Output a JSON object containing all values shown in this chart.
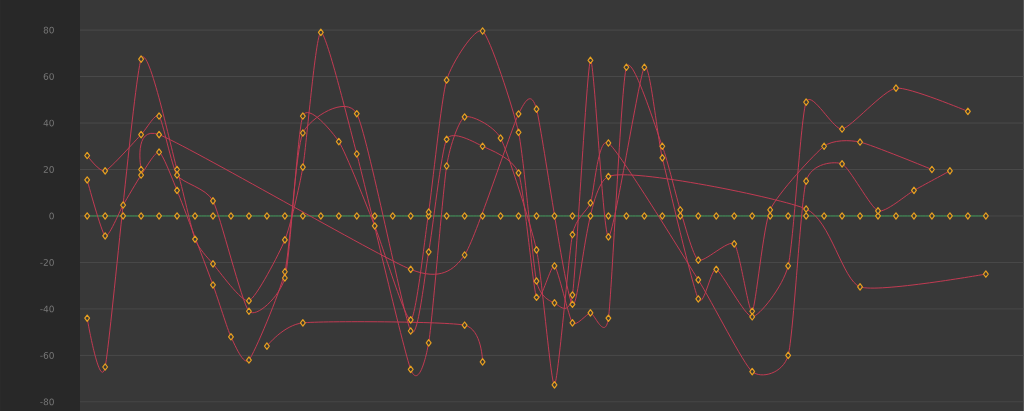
{
  "chart_data": {
    "type": "line",
    "marker": "diamond",
    "line_style": "solid",
    "grid": "y",
    "tick_labels": "y",
    "categories": [
      null,
      null,
      null,
      null,
      null,
      null,
      null,
      null,
      null,
      null,
      null,
      null,
      null,
      null,
      null,
      null,
      null,
      null,
      null,
      null,
      null,
      null,
      null,
      null,
      null,
      null,
      null,
      null,
      null,
      null,
      null,
      null,
      null,
      null,
      null,
      null,
      null,
      null,
      null,
      null,
      null,
      null,
      null,
      null,
      null,
      null,
      null,
      null,
      null,
      null,
      null
    ],
    "ylim": [
      -83.9,
      92.9
    ],
    "yticks": [
      -80,
      -60,
      -40,
      -20,
      0,
      20,
      40,
      60,
      80
    ],
    "series": [
      {
        "color": "#c23a52",
        "values": [
          26,
          19.4,
          null,
          35,
          43,
          17.6,
          null,
          6.5,
          null,
          -41,
          null,
          -26.7,
          43,
          null,
          32,
          null,
          -4.3,
          null,
          -44.7,
          1.7,
          58.5,
          null,
          79.6,
          null,
          36,
          -28,
          -37.4,
          -34,
          67,
          -9,
          null,
          64,
          25,
          null,
          -35.7,
          -23,
          null,
          -43.4,
          null,
          -21.5,
          49,
          null,
          37.4,
          null,
          null,
          55,
          null,
          null,
          null,
          45,
          null
        ]
      },
      {
        "color": "#c23a52",
        "values": [
          15.5,
          -8.6,
          4.7,
          17.6,
          27.5,
          11,
          null,
          -29.7,
          -52,
          -62,
          null,
          -24,
          35.7,
          null,
          null,
          44,
          null,
          null,
          -49.5,
          -15.5,
          33,
          null,
          30,
          null,
          18.5,
          -35,
          -21.5,
          -46,
          -41.7,
          -44,
          64,
          null,
          30,
          2.6,
          -19,
          null,
          -12,
          -41,
          2.6,
          null,
          null,
          30,
          null,
          31.8,
          null,
          null,
          null,
          20,
          null,
          null,
          null
        ]
      },
      {
        "color": "#c23a52",
        "values": [
          -44,
          -65,
          null,
          67.5,
          null,
          20,
          -10,
          -20.6,
          null,
          -36.5,
          null,
          -10.3,
          21,
          79,
          null,
          26.7,
          null,
          null,
          -66,
          -54.6,
          21.5,
          42.6,
          null,
          33.5,
          null,
          -14.6,
          -72.7,
          -8,
          5.6,
          31.4,
          null,
          null,
          null,
          null,
          -27.5,
          null,
          null,
          -67,
          null,
          -60,
          15,
          null,
          22.4,
          null,
          2.2,
          null,
          11,
          null,
          19.4,
          null,
          null
        ]
      },
      {
        "color": "#c23a52",
        "values": [
          null,
          null,
          null,
          20,
          35,
          null,
          null,
          null,
          null,
          null,
          null,
          null,
          null,
          null,
          null,
          null,
          null,
          null,
          -23,
          null,
          null,
          -16.8,
          null,
          null,
          43.9,
          46,
          null,
          -38,
          null,
          17,
          null,
          null,
          null,
          null,
          null,
          null,
          null,
          null,
          null,
          null,
          3,
          null,
          null,
          -30.5,
          null,
          null,
          null,
          null,
          null,
          null,
          -25
        ]
      },
      {
        "color": "#c23a52",
        "values": [
          null,
          null,
          null,
          null,
          null,
          null,
          null,
          null,
          null,
          null,
          -56,
          null,
          -46,
          null,
          null,
          null,
          null,
          null,
          null,
          null,
          null,
          -47,
          -62.8,
          null,
          null,
          null,
          null,
          null,
          null,
          null,
          null,
          null,
          null,
          null,
          null,
          null,
          null,
          null,
          null,
          null,
          null,
          null,
          null,
          null,
          null,
          null,
          null,
          null,
          null,
          null,
          null
        ]
      },
      {
        "color": "#3d9a57",
        "values": [
          0,
          0,
          0,
          0,
          0,
          0,
          0,
          0,
          0,
          0,
          0,
          0,
          0,
          0,
          0,
          0,
          0,
          0,
          0,
          0,
          0,
          0,
          0,
          0,
          0,
          0,
          0,
          0,
          0,
          0,
          0,
          0,
          0,
          0,
          0,
          0,
          0,
          0,
          0,
          0,
          0,
          0,
          0,
          0,
          0,
          0,
          0,
          0,
          0,
          0,
          0
        ]
      }
    ]
  }
}
